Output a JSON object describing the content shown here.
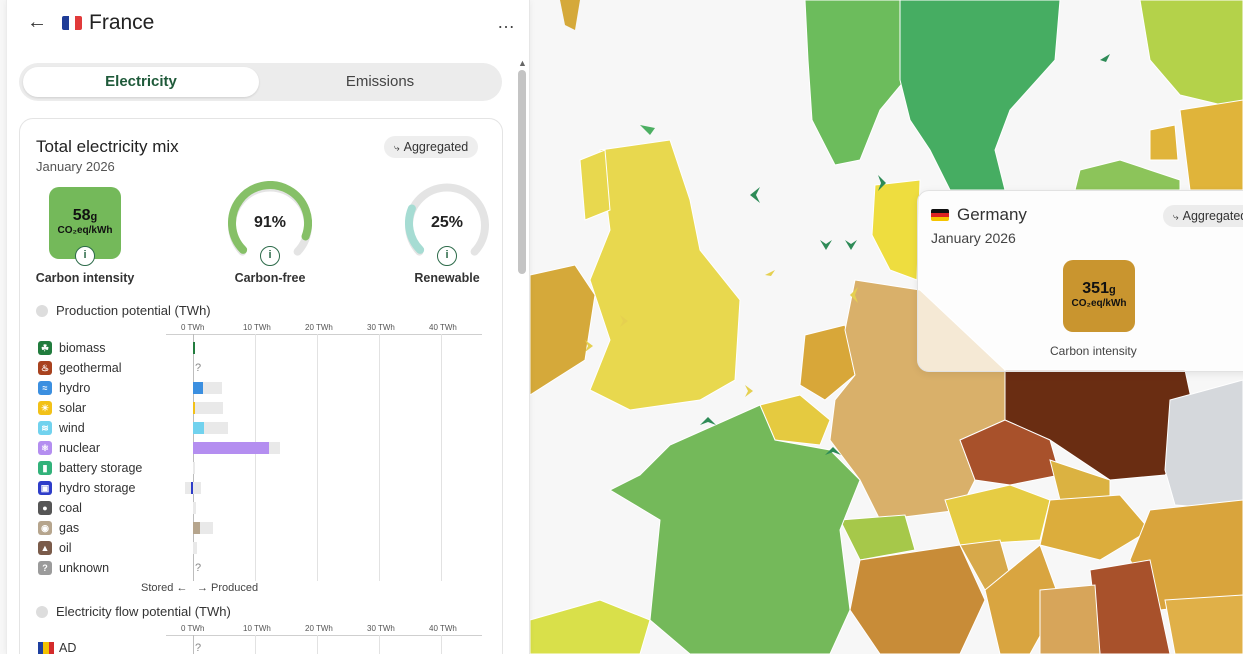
{
  "header": {
    "zone_name": "France",
    "back_icon": "arrow-left-icon",
    "more_label": "…"
  },
  "tabs": {
    "electricity": "Electricity",
    "emissions": "Emissions"
  },
  "mix_card": {
    "title": "Total electricity mix",
    "period": "January 2026",
    "aggregated_label": "Aggregated",
    "carbon_intensity": {
      "value": "58",
      "unit_small": "g",
      "unit": "CO₂eq/kWh",
      "label": "Carbon intensity",
      "color": "#74b95a"
    },
    "carbon_free": {
      "value": "91%",
      "fraction": 0.91,
      "label": "Carbon-free",
      "color": "#86c067"
    },
    "renewable": {
      "value": "25%",
      "fraction": 0.25,
      "label": "Renewable",
      "color": "#a6dcd3"
    }
  },
  "production": {
    "title": "Production potential (TWh)",
    "ticks": [
      "0 TWh",
      "10 TWh",
      "20 TWh",
      "30 TWh",
      "40 TWh"
    ],
    "rows": [
      {
        "label": "biomass",
        "icon": "leaf-icon",
        "color": "#217c3d",
        "value_twh": 0.3,
        "capacity_twh": 0.3,
        "unknown": false
      },
      {
        "label": "geothermal",
        "icon": "geothermal-icon",
        "color": "#a8421f",
        "value_twh": 0,
        "capacity_twh": 0,
        "unknown": true
      },
      {
        "label": "hydro",
        "icon": "waves-icon",
        "color": "#3b8fe0",
        "value_twh": 1.6,
        "capacity_twh": 4.6,
        "unknown": false
      },
      {
        "label": "solar",
        "icon": "sun-icon",
        "color": "#f2c118",
        "value_twh": 0.4,
        "capacity_twh": 4.8,
        "unknown": false
      },
      {
        "label": "wind",
        "icon": "wind-icon",
        "color": "#71d2ee",
        "value_twh": 1.7,
        "capacity_twh": 5.6,
        "unknown": false
      },
      {
        "label": "nuclear",
        "icon": "atom-icon",
        "color": "#b48ef0",
        "value_twh": 12.2,
        "capacity_twh": 14.0,
        "unknown": false
      },
      {
        "label": "battery storage",
        "icon": "battery-icon",
        "color": "#32b27a",
        "value_twh": 0,
        "capacity_twh": 0.1,
        "unknown": false
      },
      {
        "label": "hydro storage",
        "icon": "hydro-storage-icon",
        "color": "#2e3dc9",
        "value_twh": -0.3,
        "capacity_twh": 1.3,
        "stored_twh": -1.3,
        "unknown": false
      },
      {
        "label": "coal",
        "icon": "coal-icon",
        "color": "#555555",
        "value_twh": 0,
        "capacity_twh": 0.5,
        "unknown": false
      },
      {
        "label": "gas",
        "icon": "gas-icon",
        "color": "#b6a58d",
        "value_twh": 1.2,
        "capacity_twh": 3.2,
        "unknown": false
      },
      {
        "label": "oil",
        "icon": "oil-icon",
        "color": "#7a5b4a",
        "value_twh": 0,
        "capacity_twh": 0.6,
        "unknown": false
      },
      {
        "label": "unknown",
        "icon": "question-icon",
        "color": "#9b9b9b",
        "value_twh": 0,
        "capacity_twh": 0,
        "unknown": true
      }
    ],
    "stored_label": "Stored ←",
    "produced_label": "→ Produced"
  },
  "flows": {
    "title": "Electricity flow potential (TWh)",
    "ticks": [
      "0 TWh",
      "10 TWh",
      "20 TWh",
      "30 TWh",
      "40 TWh"
    ],
    "rows": [
      {
        "label": "AD",
        "unknown": true
      }
    ]
  },
  "tooltip": {
    "zone_name": "Germany",
    "period": "January 2026",
    "aggregated_label": "Aggregated",
    "carbon_intensity": {
      "value": "351",
      "unit_small": "g",
      "unit": "CO₂eq/kWh",
      "label": "Carbon intensity",
      "color": "#c9952f"
    }
  },
  "colors": {
    "accent": "#1f5a3a",
    "map_low": "#4caf62",
    "map_high": "#6b2c14"
  }
}
